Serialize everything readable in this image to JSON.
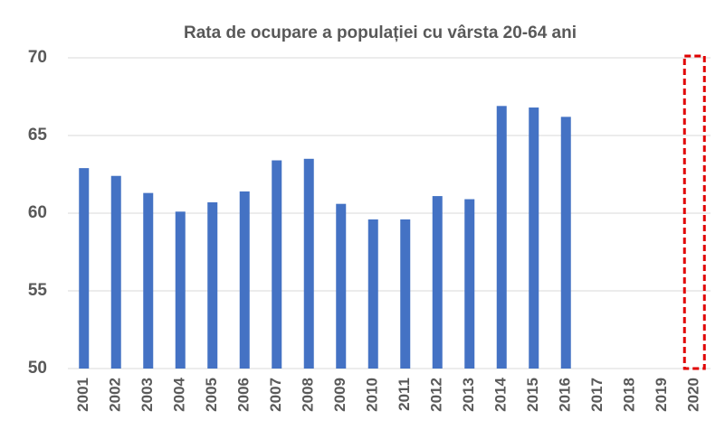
{
  "chart_data": {
    "type": "bar",
    "title": "Rata de ocupare a populației cu vârsta 20-64 ani",
    "categories": [
      "2001",
      "2002",
      "2003",
      "2004",
      "2005",
      "2006",
      "2007",
      "2008",
      "2009",
      "2010",
      "2011",
      "2012",
      "2013",
      "2014",
      "2015",
      "2016",
      "2017",
      "2018",
      "2019",
      "2020"
    ],
    "values": [
      62.9,
      62.4,
      61.3,
      60.1,
      60.7,
      61.4,
      63.4,
      63.5,
      60.6,
      59.6,
      59.6,
      61.1,
      60.9,
      66.9,
      66.8,
      66.2,
      null,
      null,
      null,
      null
    ],
    "color": "#4472c4",
    "ylim": [
      50,
      70
    ],
    "yticks": [
      50,
      55,
      60,
      65,
      70
    ],
    "grid": true
  }
}
